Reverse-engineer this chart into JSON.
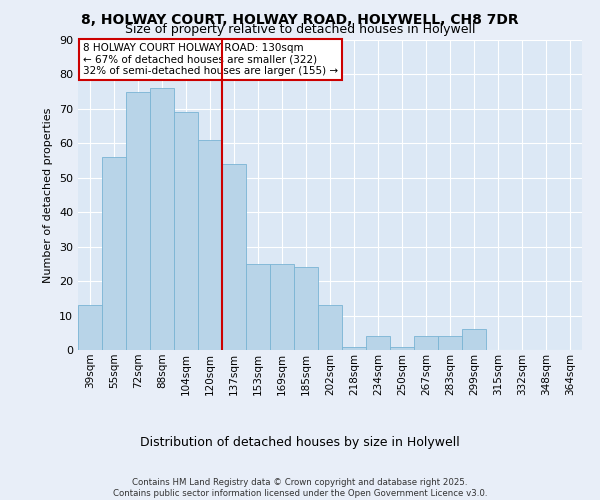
{
  "title1": "8, HOLWAY COURT, HOLWAY ROAD, HOLYWELL, CH8 7DR",
  "title2": "Size of property relative to detached houses in Holywell",
  "xlabel": "Distribution of detached houses by size in Holywell",
  "ylabel": "Number of detached properties",
  "bar_labels": [
    "39sqm",
    "55sqm",
    "72sqm",
    "88sqm",
    "104sqm",
    "120sqm",
    "137sqm",
    "153sqm",
    "169sqm",
    "185sqm",
    "202sqm",
    "218sqm",
    "234sqm",
    "250sqm",
    "267sqm",
    "283sqm",
    "299sqm",
    "315sqm",
    "332sqm",
    "348sqm",
    "364sqm"
  ],
  "bar_values": [
    13,
    56,
    75,
    76,
    69,
    61,
    54,
    25,
    25,
    24,
    13,
    1,
    4,
    1,
    4,
    4,
    6,
    0,
    0,
    0,
    0
  ],
  "bar_color": "#b8d4e8",
  "bar_edgecolor": "#7ab4d4",
  "vline_x_index": 6,
  "vline_color": "#cc0000",
  "annotation_text": "8 HOLWAY COURT HOLWAY ROAD: 130sqm\n← 67% of detached houses are smaller (322)\n32% of semi-detached houses are larger (155) →",
  "annotation_box_edgecolor": "#cc0000",
  "ylim": [
    0,
    90
  ],
  "yticks": [
    0,
    10,
    20,
    30,
    40,
    50,
    60,
    70,
    80,
    90
  ],
  "background_color": "#dce8f5",
  "grid_color": "#ffffff",
  "fig_background": "#e8eef8",
  "footer": "Contains HM Land Registry data © Crown copyright and database right 2025.\nContains public sector information licensed under the Open Government Licence v3.0."
}
